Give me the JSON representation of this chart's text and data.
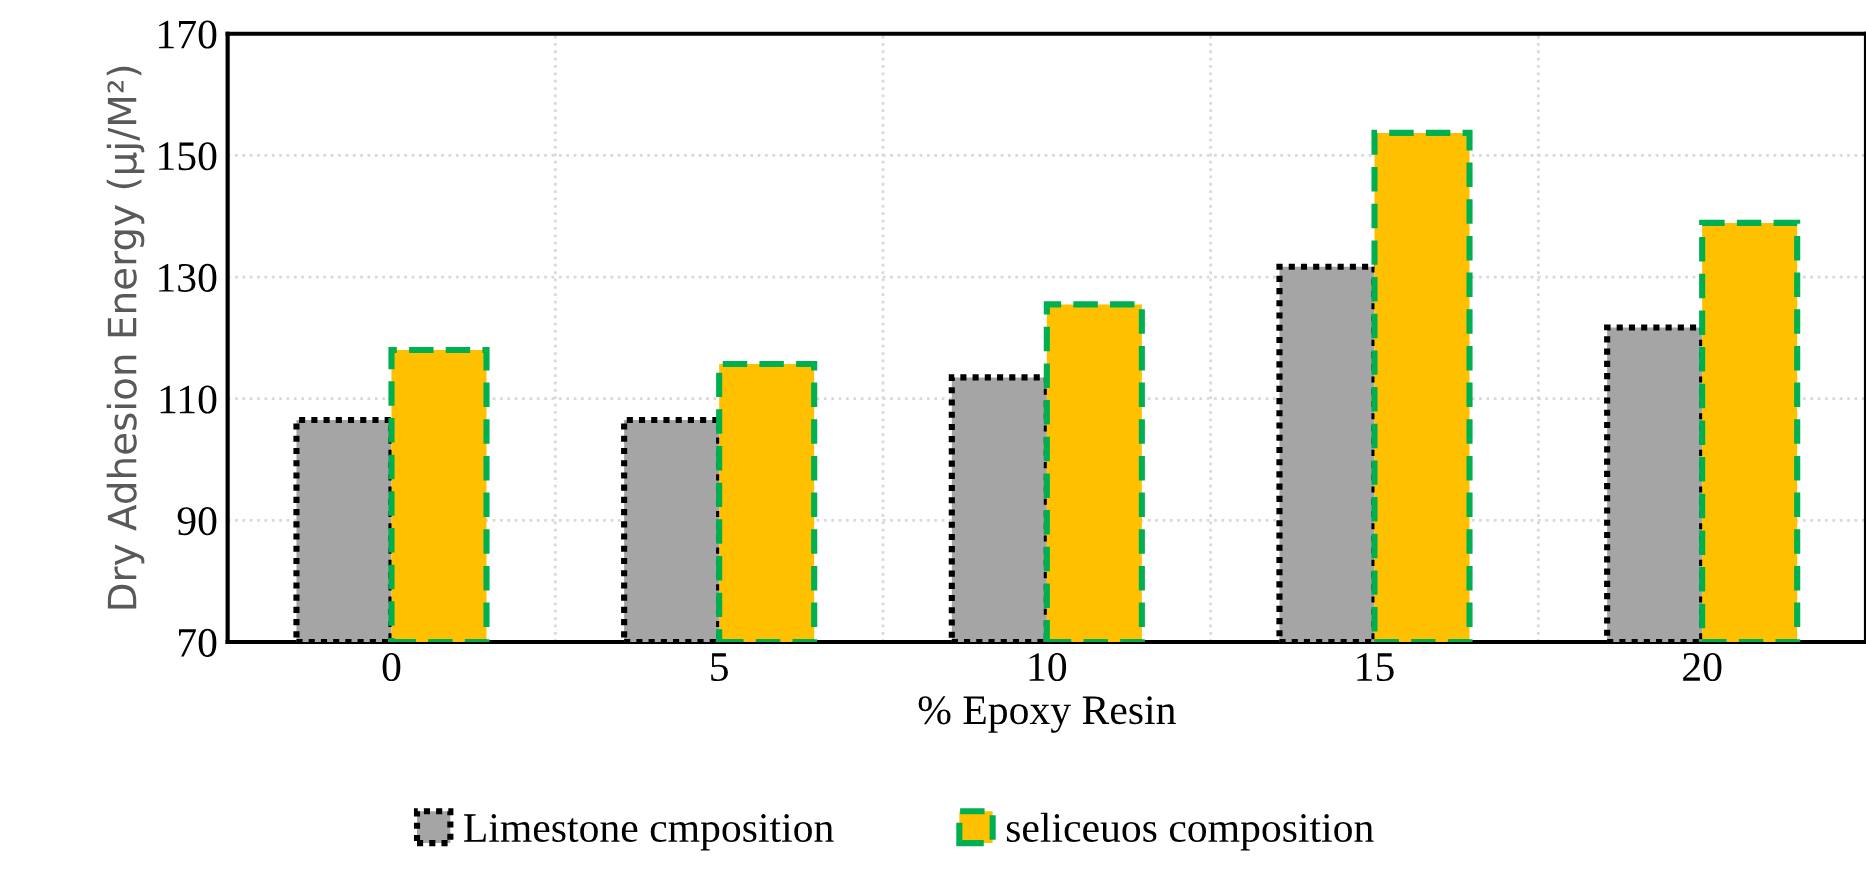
{
  "chart_data": {
    "type": "bar",
    "xlabel": "% Epoxy Resin",
    "ylabel": "Dry Adhesion Energy (µj/M²)",
    "categories": [
      "0",
      "5",
      "10",
      "15",
      "20"
    ],
    "series": [
      {
        "name": "Limestone cmposition",
        "color": "#a5a5a5",
        "line_style": "dotted",
        "values": [
          106.5,
          106.5,
          113.5,
          131.7,
          121.7
        ]
      },
      {
        "name": "seliceuos composition",
        "color": "#ffc000",
        "line_style": "dashed",
        "values": [
          118,
          115.7,
          125.5,
          153.7,
          138.9
        ]
      }
    ],
    "ylim": [
      70,
      170
    ],
    "yticks": [
      70,
      90,
      110,
      130,
      150,
      170
    ],
    "grid": true,
    "legend": "bottom"
  }
}
